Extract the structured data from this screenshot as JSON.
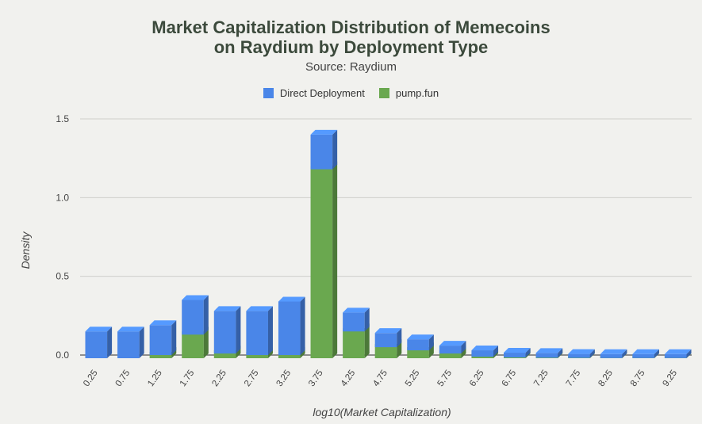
{
  "chart_data": {
    "type": "bar",
    "stacked": true,
    "title_line1": "Market Capitalization Distribution of Memecoins",
    "title_line2": "on Raydium by Deployment Type",
    "subtitle": "Source: Raydium",
    "xlabel": "log10(Market Capitalization)",
    "ylabel": "Density",
    "ylim": [
      0,
      1.5
    ],
    "yticks": [
      "0.0",
      "0.5",
      "1.0",
      "1.5"
    ],
    "grid": true,
    "legend_position": "top",
    "categories": [
      "0.25",
      "0.75",
      "1.25",
      "1.75",
      "2.25",
      "2.75",
      "3.25",
      "3.75",
      "4.25",
      "4.75",
      "5.25",
      "5.75",
      "6.25",
      "6.75",
      "7.25",
      "7.75",
      "8.25",
      "8.75",
      "9.25"
    ],
    "series": [
      {
        "name": "Direct Deployment",
        "color": "#4a86e8",
        "values": [
          0.15,
          0.15,
          0.17,
          0.2,
          0.25,
          0.26,
          0.32,
          0.2,
          0.1,
          0.07,
          0.05,
          0.03,
          0.02,
          0.01,
          0.01,
          0.005,
          0.005,
          0.005,
          0.005
        ]
      },
      {
        "name": "pump.fun",
        "color": "#6aa84f",
        "values": [
          0.0,
          0.0,
          0.02,
          0.15,
          0.03,
          0.02,
          0.02,
          1.2,
          0.17,
          0.07,
          0.05,
          0.03,
          0.01,
          0.005,
          0.003,
          0.002,
          0.001,
          0.001,
          0.001
        ]
      }
    ]
  }
}
